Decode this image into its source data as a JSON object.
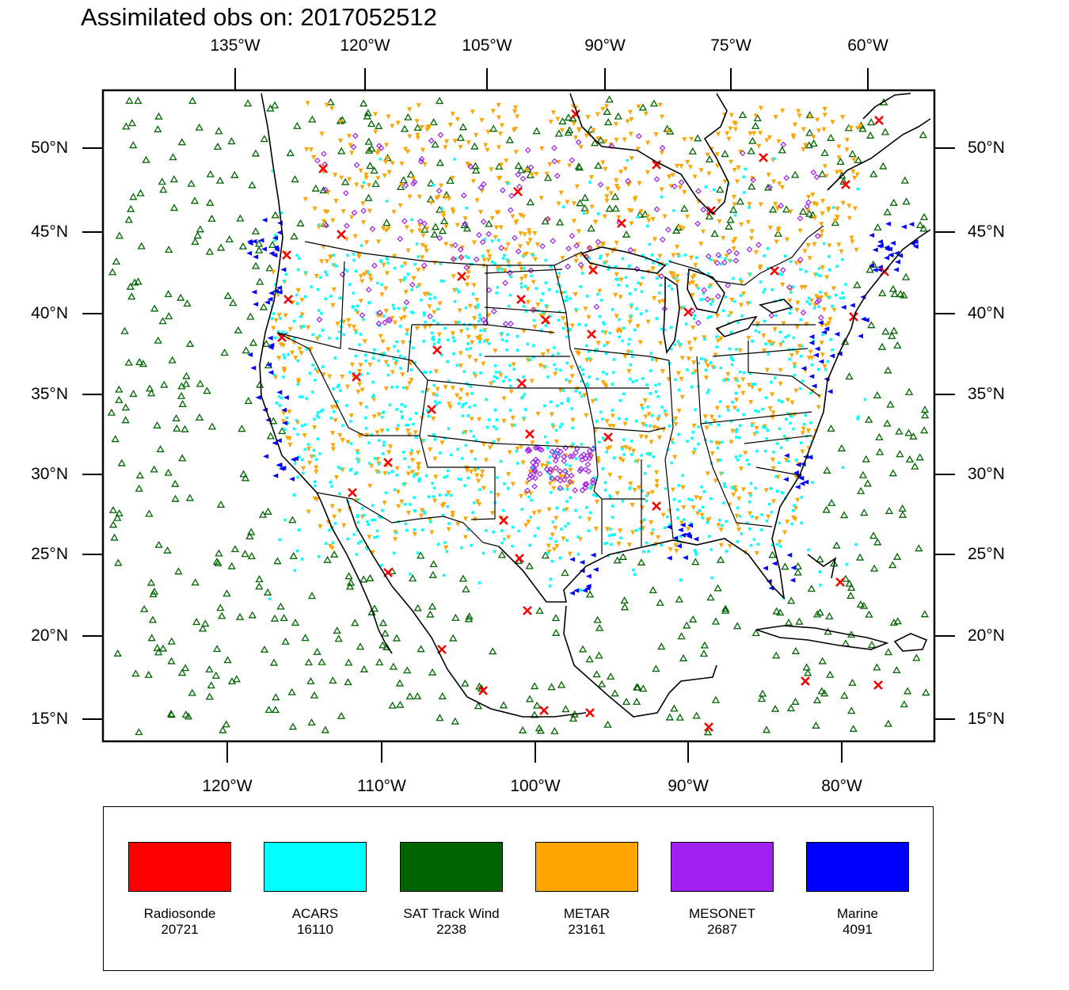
{
  "title": "Assimilated obs on: 2017052512",
  "axes": {
    "top_labels": [
      "135°W",
      "120°W",
      "105°W",
      "90°W",
      "75°W",
      "60°W"
    ],
    "bottom_labels": [
      "120°W",
      "110°W",
      "100°W",
      "90°W",
      "80°W"
    ],
    "left_labels": [
      "50°N",
      "45°N",
      "40°N",
      "35°N",
      "30°N",
      "25°N",
      "20°N",
      "15°N"
    ],
    "right_labels": [
      "50°N",
      "45°N",
      "40°N",
      "35°N",
      "30°N",
      "25°N",
      "20°N",
      "15°N"
    ]
  },
  "legend": [
    {
      "name": "Radiosonde",
      "count": "20721",
      "color": "#ff0000",
      "marker": "x-cross"
    },
    {
      "name": "ACARS",
      "count": "16110",
      "color": "#00ffff",
      "marker": "square-dot"
    },
    {
      "name": "SAT Track Wind",
      "count": "2238",
      "color": "#006400",
      "marker": "hollow-triangle-up"
    },
    {
      "name": "METAR",
      "count": "23161",
      "color": "#ffa500",
      "marker": "filled-triangle-down"
    },
    {
      "name": "MESONET",
      "count": "2687",
      "color": "#a020f0",
      "marker": "hollow-diamond"
    },
    {
      "name": "Marine",
      "count": "4091",
      "color": "#0000ff",
      "marker": "filled-triangle-left"
    }
  ]
}
